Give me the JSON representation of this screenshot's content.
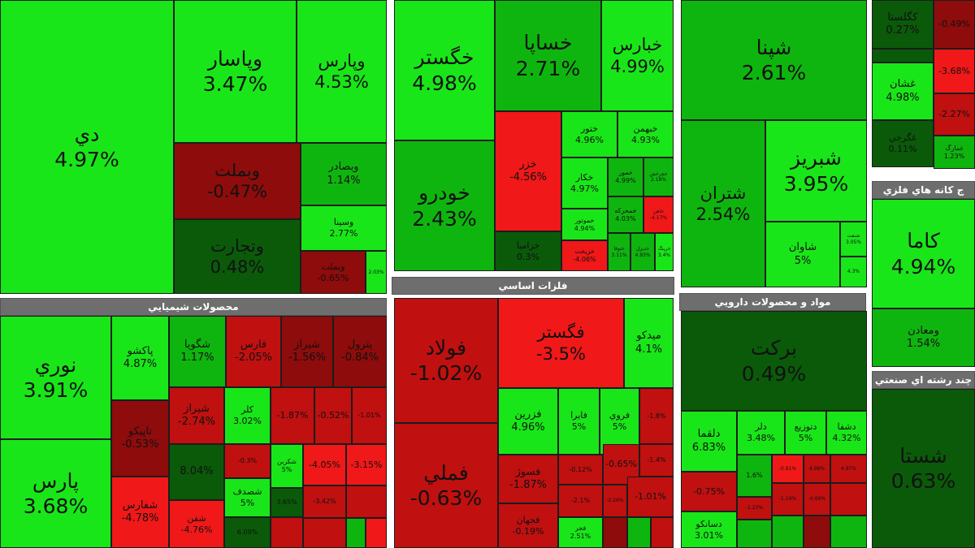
{
  "colors": {
    "bright_green": "#19e619",
    "mid_green": "#0fb50f",
    "dark_green": "#0a5a0a",
    "bright_red": "#f01818",
    "mid_red": "#c01010",
    "dark_red": "#8e0c0c"
  },
  "groups": {
    "chemical": "محصولات شيميايي",
    "metals": "فلزات اساسي",
    "pharma": "مواد و محصولات دارويي",
    "mining": "ج كانه هاي فلزي",
    "multi": "چند رشته اي صنعتي"
  },
  "tiles": [
    {
      "name": "دي",
      "pct": "4.97%"
    },
    {
      "name": "وپاسار",
      "pct": "3.47%"
    },
    {
      "name": "وپارس",
      "pct": "4.53%"
    },
    {
      "name": "وبملت",
      "pct": "-0.47%"
    },
    {
      "name": "وتجارت",
      "pct": "0.48%"
    },
    {
      "name": "وبصادر",
      "pct": "1.14%"
    },
    {
      "name": "وسينا",
      "pct": "2.77%"
    },
    {
      "name": "وبملت",
      "pct": "-0.65%"
    },
    {
      "name": "",
      "pct": "2.03%"
    },
    {
      "name": "خگستر",
      "pct": "4.98%"
    },
    {
      "name": "خودرو",
      "pct": "2.43%"
    },
    {
      "name": "خساپا",
      "pct": "2.71%"
    },
    {
      "name": "خبارس",
      "pct": "4.99%"
    },
    {
      "name": "خزر",
      "pct": "-4.56%"
    },
    {
      "name": "خزاميا",
      "pct": "0.3%"
    },
    {
      "name": "ختور",
      "pct": "4.96%"
    },
    {
      "name": "خبهمن",
      "pct": "4.93%"
    },
    {
      "name": "خكار",
      "pct": "4.97%"
    },
    {
      "name": "خمور",
      "pct": "4.99%"
    },
    {
      "name": "خچرخش",
      "pct": "2.18%"
    },
    {
      "name": "خموتور",
      "pct": "4.94%"
    },
    {
      "name": "خمحركه",
      "pct": "4.03%"
    },
    {
      "name": "خاهن",
      "pct": "-4.17%"
    },
    {
      "name": "خريخت",
      "pct": "-4.06%"
    },
    {
      "name": "ختوقا",
      "pct": "3.11%"
    },
    {
      "name": "خديزل",
      "pct": "4.93%"
    },
    {
      "name": "خرينگ",
      "pct": "3.4%"
    },
    {
      "name": "شپنا",
      "pct": "2.61%"
    },
    {
      "name": "شتران",
      "pct": "2.54%"
    },
    {
      "name": "شبريز",
      "pct": "3.95%"
    },
    {
      "name": "شاوان",
      "pct": "5%"
    },
    {
      "name": "شنفت",
      "pct": "3.05%"
    },
    {
      "name": "",
      "pct": "4.3%"
    },
    {
      "name": "كگلستا",
      "pct": "0.27%"
    },
    {
      "name": "",
      "pct": "-0.49%"
    },
    {
      "name": "غشان",
      "pct": "4.98%"
    },
    {
      "name": "",
      "pct": "-3.68%"
    },
    {
      "name": "",
      "pct": "-2.27%"
    },
    {
      "name": "غگرجي",
      "pct": "0.11%"
    },
    {
      "name": "غمارگ",
      "pct": "1.23%"
    },
    {
      "name": "نوري",
      "pct": "3.91%"
    },
    {
      "name": "پارس",
      "pct": "3.68%"
    },
    {
      "name": "پاكشو",
      "pct": "4.87%"
    },
    {
      "name": "شگويا",
      "pct": "1.17%"
    },
    {
      "name": "فارس",
      "pct": "-2.05%"
    },
    {
      "name": "شيراز",
      "pct": "-1.56%"
    },
    {
      "name": "پترول",
      "pct": "-0.84%"
    },
    {
      "name": "تاپيكو",
      "pct": "-0.53%"
    },
    {
      "name": "شيراز",
      "pct": "-2.74%"
    },
    {
      "name": "كلر",
      "pct": "3.02%"
    },
    {
      "name": "",
      "pct": "-1.87%"
    },
    {
      "name": "",
      "pct": "-0.52%"
    },
    {
      "name": "",
      "pct": "-1.01%"
    },
    {
      "name": "شفارس",
      "pct": "-4.78%"
    },
    {
      "name": "شفن",
      "pct": "-4.76%"
    },
    {
      "name": "",
      "pct": "8.04%"
    },
    {
      "name": "",
      "pct": "-0.3%"
    },
    {
      "name": "شكربن",
      "pct": "5%"
    },
    {
      "name": "",
      "pct": "-4.05%"
    },
    {
      "name": "",
      "pct": "-3.15%"
    },
    {
      "name": "شصدف",
      "pct": "5%"
    },
    {
      "name": "",
      "pct": "3.65%"
    },
    {
      "name": "",
      "pct": "-3.42%"
    },
    {
      "name": "",
      "pct": "6.09%"
    },
    {
      "name": "فولاد",
      "pct": "-1.02%"
    },
    {
      "name": "فملي",
      "pct": "-0.63%"
    },
    {
      "name": "فگستر",
      "pct": "-3.5%"
    },
    {
      "name": "ميدكو",
      "pct": "4.1%"
    },
    {
      "name": "فزرين",
      "pct": "4.96%"
    },
    {
      "name": "فايرا",
      "pct": "5%"
    },
    {
      "name": "فروي",
      "pct": "5%"
    },
    {
      "name": "",
      "pct": "-1.8%"
    },
    {
      "name": "",
      "pct": "-0.12%"
    },
    {
      "name": "",
      "pct": "-0.65%"
    },
    {
      "name": "",
      "pct": "-1.4%"
    },
    {
      "name": "فسوژ",
      "pct": "-1.87%"
    },
    {
      "name": "",
      "pct": "-2.1%"
    },
    {
      "name": "",
      "pct": "-2.26%"
    },
    {
      "name": "",
      "pct": "-1.01%"
    },
    {
      "name": "فجهان",
      "pct": "-0.19%"
    },
    {
      "name": "فجر",
      "pct": "2.51%"
    },
    {
      "name": "بركت",
      "pct": "0.49%"
    },
    {
      "name": "دلقما",
      "pct": "6.83%"
    },
    {
      "name": "دلر",
      "pct": "3.48%"
    },
    {
      "name": "دتوزيع",
      "pct": "5%"
    },
    {
      "name": "دشفا",
      "pct": "4.32%"
    },
    {
      "name": "",
      "pct": "-0.75%"
    },
    {
      "name": "",
      "pct": "1.6%"
    },
    {
      "name": "",
      "pct": "-0.91%"
    },
    {
      "name": "",
      "pct": "4.98%"
    },
    {
      "name": "",
      "pct": "4.97%"
    },
    {
      "name": "",
      "pct": "-1.22%"
    },
    {
      "name": "دسانكو",
      "pct": "3.01%"
    },
    {
      "name": "",
      "pct": "-1.19%"
    },
    {
      "name": "",
      "pct": "-0.66%"
    },
    {
      "name": "كاما",
      "pct": "4.94%"
    },
    {
      "name": "ومعادن",
      "pct": "1.54%"
    },
    {
      "name": "شستا",
      "pct": "0.63%"
    }
  ]
}
